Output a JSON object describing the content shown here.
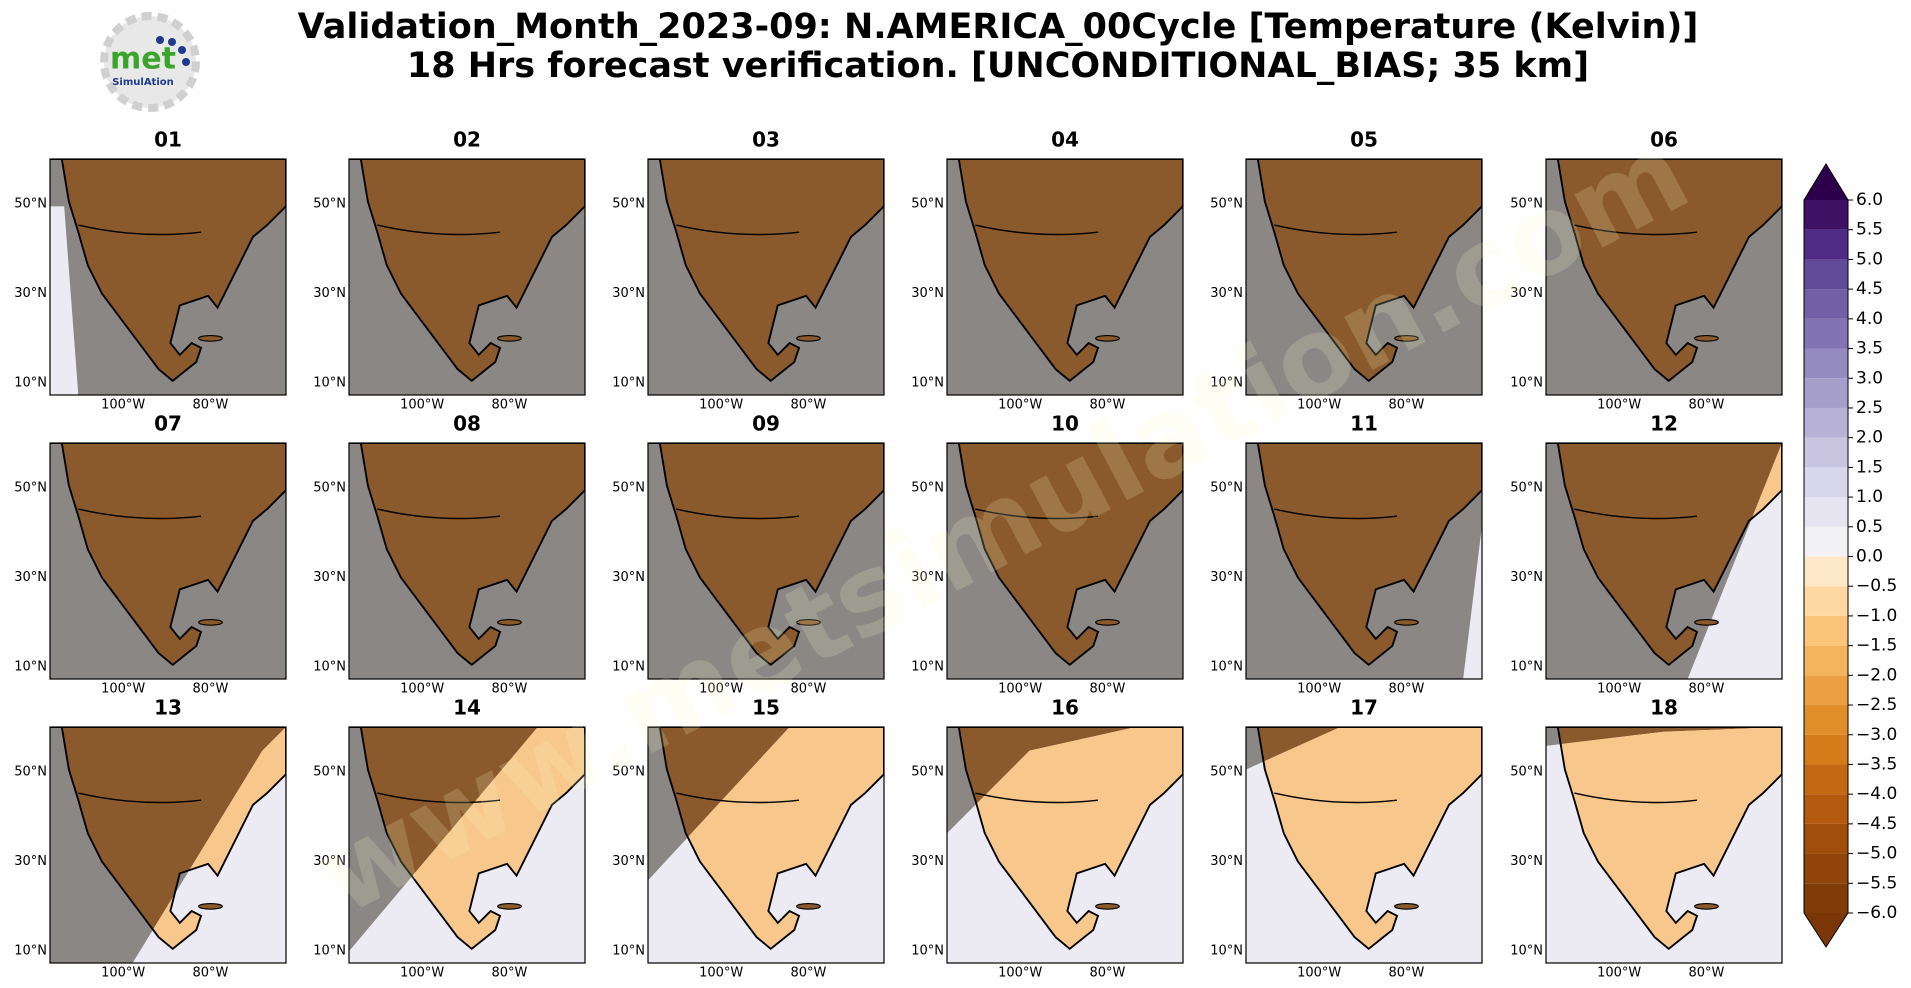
{
  "header": {
    "title": "Validation_Month_2023-09: N.AMERICA_00Cycle [Temperature (Kelvin)]",
    "subtitle": "18 Hrs forecast verification. [UNCONDITIONAL_BIAS; 35 km]"
  },
  "logo": {
    "text": "met",
    "subtext": "SimulAtion"
  },
  "watermark": "www.metsimulation.com",
  "panels": [
    {
      "label": "01"
    },
    {
      "label": "02"
    },
    {
      "label": "03"
    },
    {
      "label": "04"
    },
    {
      "label": "05"
    },
    {
      "label": "06"
    },
    {
      "label": "07"
    },
    {
      "label": "08"
    },
    {
      "label": "09"
    },
    {
      "label": "10"
    },
    {
      "label": "11"
    },
    {
      "label": "12"
    },
    {
      "label": "13"
    },
    {
      "label": "14"
    },
    {
      "label": "15"
    },
    {
      "label": "16"
    },
    {
      "label": "17"
    },
    {
      "label": "18"
    }
  ],
  "map_axes": {
    "lat_labels": [
      "50°N",
      "30°N",
      "10°N"
    ],
    "lon_labels": [
      "100°W",
      "80°W"
    ]
  },
  "colorbar": {
    "ticks": [
      {
        "value": -6,
        "label": "−6.0"
      },
      {
        "value": -5.5,
        "label": "−5.5"
      },
      {
        "value": -5,
        "label": "−5.0"
      },
      {
        "value": -4.5,
        "label": "−4.5"
      },
      {
        "value": -4,
        "label": "−4.0"
      },
      {
        "value": -3.5,
        "label": "−3.5"
      },
      {
        "value": -3,
        "label": "−3.0"
      },
      {
        "value": -2.5,
        "label": "−2.5"
      },
      {
        "value": -2,
        "label": "−2.0"
      },
      {
        "value": -1.5,
        "label": "−1.5"
      },
      {
        "value": -1,
        "label": "−1.0"
      },
      {
        "value": -0.5,
        "label": "−0.5"
      },
      {
        "value": 0,
        "label": "0.0"
      },
      {
        "value": 0.5,
        "label": "0.5"
      },
      {
        "value": 1,
        "label": "1.0"
      },
      {
        "value": 1.5,
        "label": "1.5"
      },
      {
        "value": 2,
        "label": "2.0"
      },
      {
        "value": 2.5,
        "label": "2.5"
      },
      {
        "value": 3,
        "label": "3.0"
      },
      {
        "value": 3.5,
        "label": "3.5"
      },
      {
        "value": 4,
        "label": "4.0"
      },
      {
        "value": 4.5,
        "label": "4.5"
      },
      {
        "value": 5,
        "label": "5.0"
      },
      {
        "value": 5.5,
        "label": "5.5"
      },
      {
        "value": 6,
        "label": "6.0"
      }
    ],
    "colors": [
      "#7f3b08",
      "#904409",
      "#a14e0b",
      "#b35a0e",
      "#c46913",
      "#d47b1a",
      "#e08e2a",
      "#eba141",
      "#f4b45b",
      "#fbc679",
      "#fdd8a0",
      "#fde8c8",
      "#f2f2f4",
      "#e5e4f0",
      "#d8d6ea",
      "#c9c5e1",
      "#b8b2d6",
      "#a59ecb",
      "#948bbf",
      "#8274b2",
      "#7160a6",
      "#614a97",
      "#502b86",
      "#3f1165"
    ],
    "extend_colors": [
      "#7a3607",
      "#2d004b"
    ]
  }
}
